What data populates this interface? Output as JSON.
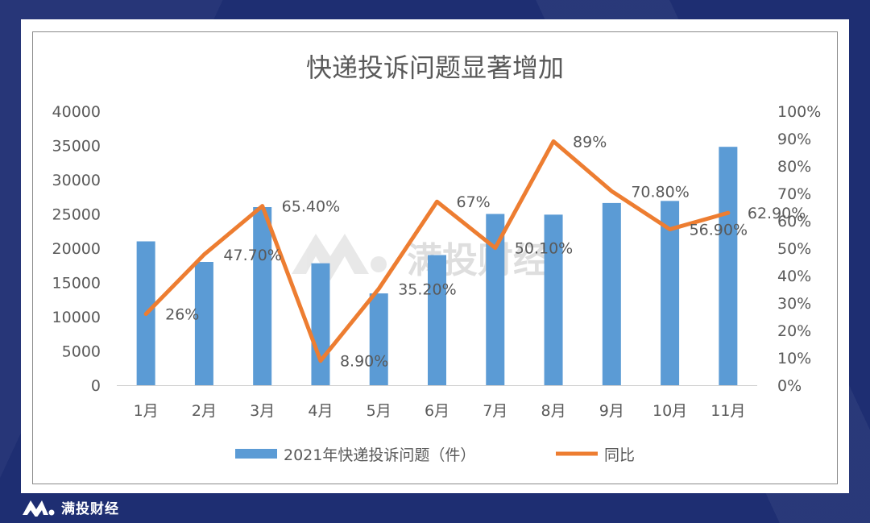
{
  "brand": {
    "name": "满投财经",
    "watermark": "满投财经"
  },
  "colors": {
    "bar": "#5b9bd5",
    "line": "#ed7d31",
    "axis_text": "#595959",
    "title": "#595959"
  },
  "chart_data": {
    "type": "bar+line",
    "title": "快递投诉问题显著增加",
    "categories": [
      "1月",
      "2月",
      "3月",
      "4月",
      "5月",
      "6月",
      "7月",
      "8月",
      "9月",
      "10月",
      "11月"
    ],
    "series": [
      {
        "name": "2021年快递投诉问题（件）",
        "type": "bar",
        "axis": "left",
        "values": [
          21000,
          18000,
          26000,
          17800,
          13400,
          19000,
          25000,
          24900,
          26600,
          26900,
          34800
        ]
      },
      {
        "name": "同比",
        "type": "line",
        "axis": "right",
        "values": [
          26,
          47.7,
          65.4,
          8.9,
          35.2,
          67,
          50.1,
          89,
          70.8,
          56.9,
          62.9
        ],
        "labels": [
          "26%",
          "47.70%",
          "65.40%",
          "8.90%",
          "35.20%",
          "67%",
          "50.10%",
          "89%",
          "70.80%",
          "56.90%",
          "62.90%"
        ]
      }
    ],
    "y_left": {
      "min": 0,
      "max": 40000,
      "ticks": [
        "0",
        "5000",
        "10000",
        "15000",
        "20000",
        "25000",
        "30000",
        "35000",
        "40000"
      ]
    },
    "y_right": {
      "min": 0,
      "max": 100,
      "ticks": [
        "0%",
        "10%",
        "20%",
        "30%",
        "40%",
        "50%",
        "60%",
        "70%",
        "80%",
        "90%",
        "100%"
      ]
    },
    "legend_position": "bottom",
    "grid": false
  }
}
